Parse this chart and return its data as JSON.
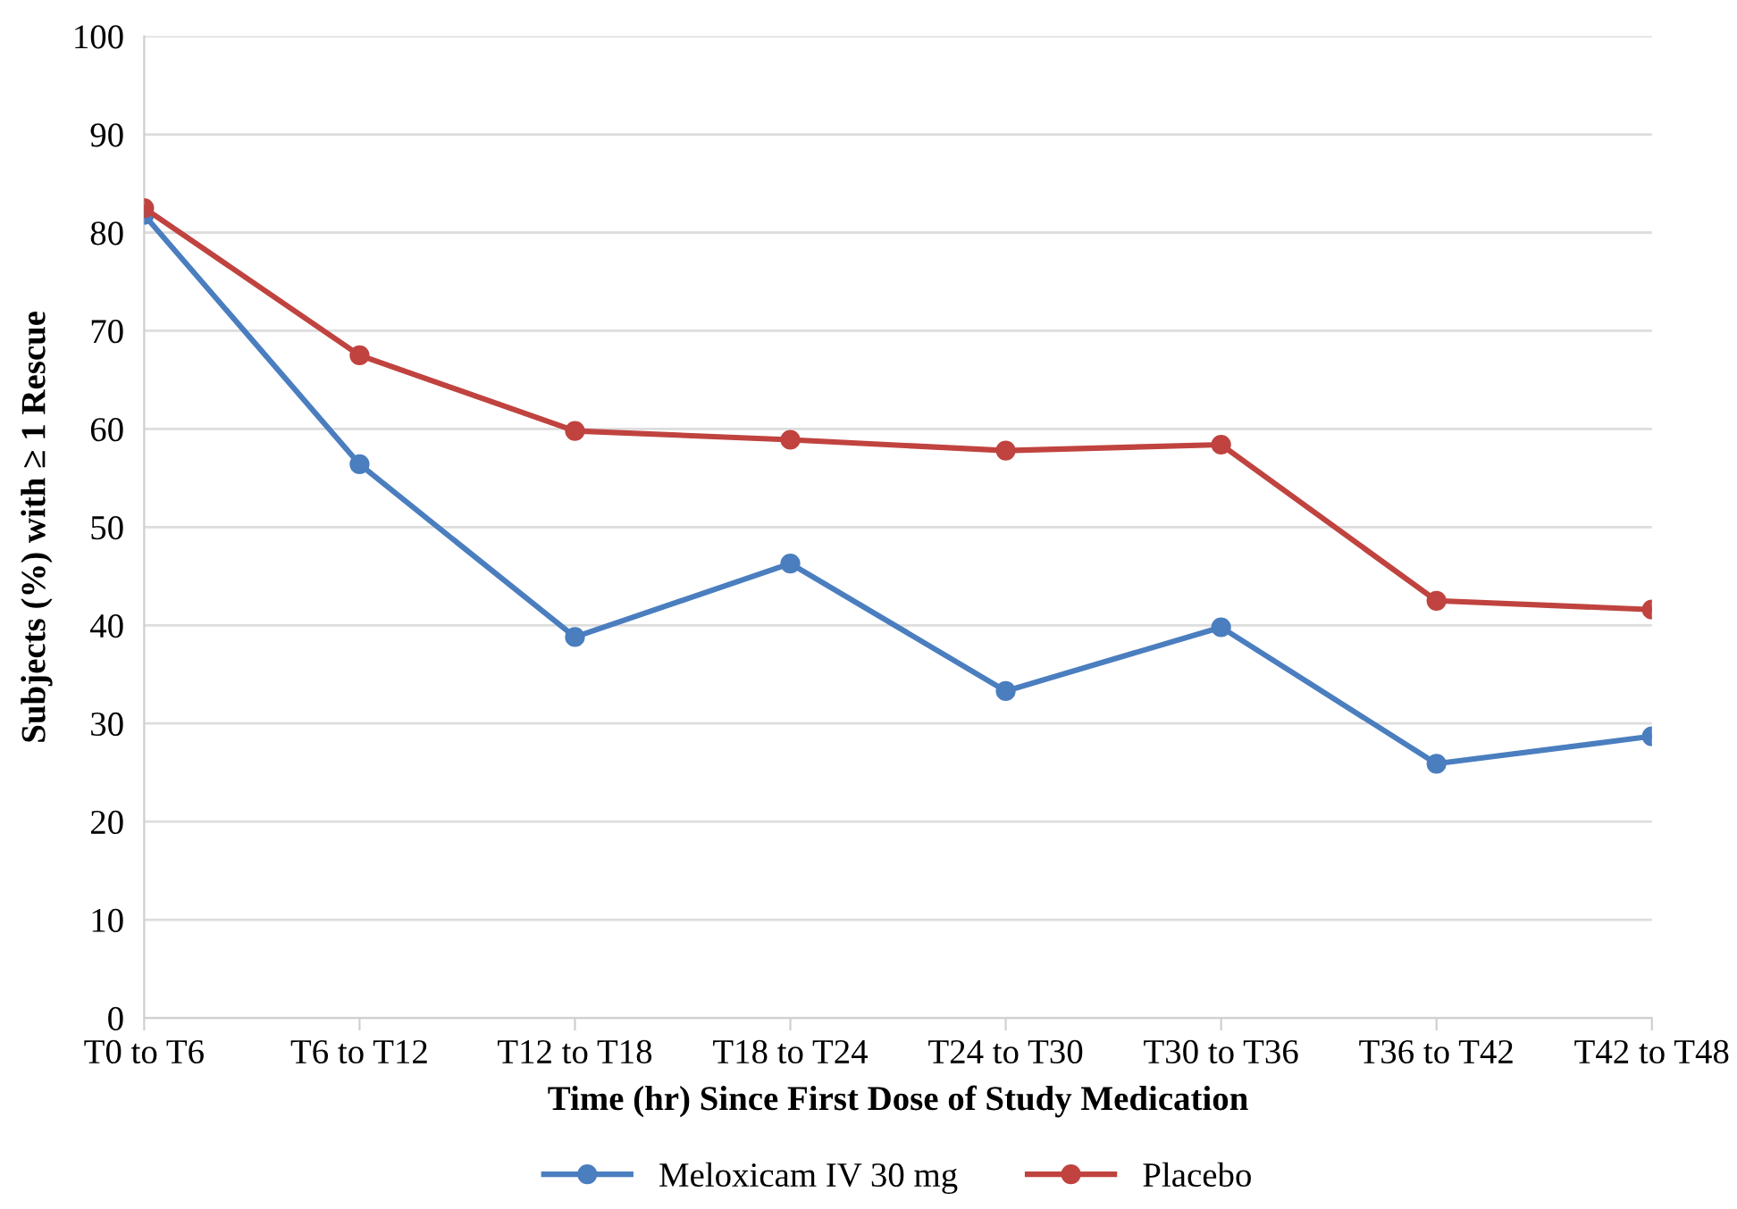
{
  "chart_data": {
    "type": "line",
    "xlabel": "Time (hr) Since First Dose of Study Medication",
    "ylabel": "Subjects (%) with ≥ 1 Rescue",
    "categories": [
      "T0 to T6",
      "T6 to T12",
      "T12 to T18",
      "T18 to T24",
      "T24 to T30",
      "T30 to T36",
      "T36 to T42",
      "T42 to T48"
    ],
    "series": [
      {
        "name": "Meloxicam IV 30 mg",
        "color": "#4a7ebf",
        "values": [
          81.8,
          56.4,
          38.8,
          46.3,
          33.3,
          39.8,
          25.9,
          28.7
        ]
      },
      {
        "name": "Placebo",
        "color": "#c0433f",
        "values": [
          82.5,
          67.5,
          59.8,
          58.9,
          57.8,
          58.4,
          42.5,
          41.6
        ]
      }
    ],
    "ylim": [
      0,
      100
    ],
    "yticks": [
      0,
      10,
      20,
      30,
      40,
      50,
      60,
      70,
      80,
      90,
      100
    ],
    "grid": "y",
    "legend": "bottom",
    "marker": "circle",
    "line_style": "solid"
  }
}
